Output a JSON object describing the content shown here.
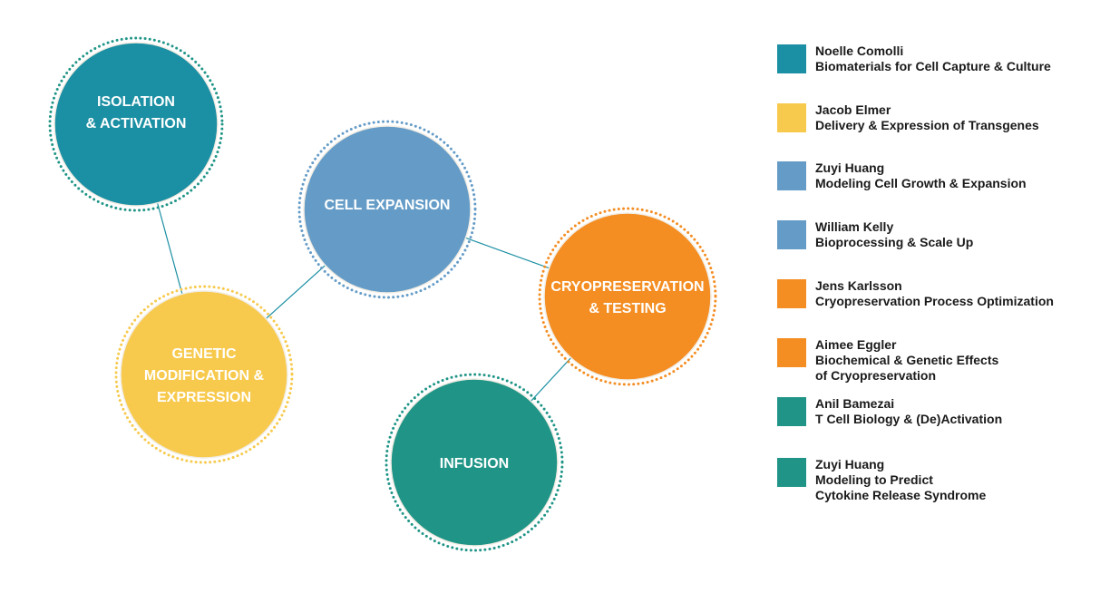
{
  "colors": {
    "teal_blue": "#1b8fa3",
    "yellow": "#f7c94c",
    "steel_blue": "#659cc7",
    "orange": "#f48d22",
    "green_teal": "#209587",
    "connector": "#1b8fa3"
  },
  "circles": [
    {
      "id": "isolation",
      "lines": [
        "ISOLATION",
        "& ACTIVATION"
      ],
      "fill": "#1b8fa3",
      "ring": "#209587"
    },
    {
      "id": "cell-expansion",
      "lines": [
        "CELL EXPANSION"
      ],
      "fill": "#659cc7",
      "ring": "#659cc7"
    },
    {
      "id": "genetic",
      "lines": [
        "GENETIC",
        "MODIFICATION &",
        "EXPRESSION"
      ],
      "fill": "#f7c94c",
      "ring": "#f7c94c"
    },
    {
      "id": "cryopreservation",
      "lines": [
        "CRYOPRESERVATION",
        "& TESTING"
      ],
      "fill": "#f48d22",
      "ring": "#f48d22"
    },
    {
      "id": "infusion",
      "lines": [
        "INFUSION"
      ],
      "fill": "#209587",
      "ring": "#209587"
    }
  ],
  "connections": [
    [
      "isolation",
      "genetic"
    ],
    [
      "genetic",
      "cell-expansion"
    ],
    [
      "cell-expansion",
      "cryopreservation"
    ],
    [
      "cryopreservation",
      "infusion"
    ]
  ],
  "legend": [
    {
      "color": "#1b8fa3",
      "lines": [
        "Noelle Comolli",
        "Biomaterials for Cell Capture & Culture"
      ]
    },
    {
      "color": "#f7c94c",
      "lines": [
        "Jacob Elmer",
        "Delivery & Expression of Transgenes"
      ]
    },
    {
      "color": "#659cc7",
      "lines": [
        "Zuyi Huang",
        "Modeling Cell Growth & Expansion"
      ]
    },
    {
      "color": "#659cc7",
      "lines": [
        "William Kelly",
        "Bioprocessing & Scale Up"
      ]
    },
    {
      "color": "#f48d22",
      "lines": [
        "Jens Karlsson",
        "Cryopreservation Process Optimization"
      ]
    },
    {
      "color": "#f48d22",
      "lines": [
        "Aimee Eggler",
        "Biochemical & Genetic Effects",
        "of Cryopreservation"
      ]
    },
    {
      "color": "#209587",
      "lines": [
        "Anil Bamezai",
        "T Cell Biology & (De)Activation"
      ]
    },
    {
      "color": "#209587",
      "lines": [
        "Zuyi Huang",
        "Modeling to Predict",
        "Cytokine Release Syndrome"
      ]
    }
  ]
}
